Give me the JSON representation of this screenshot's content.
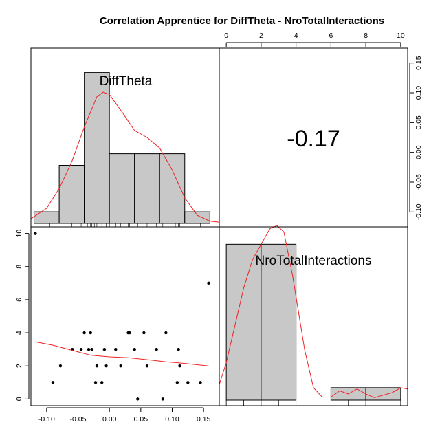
{
  "chart_data": {
    "type": "pairs",
    "title": "Correlation Apprentice for DiffTheta - NroTotalInteractions",
    "variables": [
      "DiffTheta",
      "NroTotalInteractions"
    ],
    "correlation": {
      "label": "-0.17",
      "value": -0.17
    },
    "difftheta_axis": {
      "ticks": [
        -0.1,
        -0.05,
        0.0,
        0.05,
        0.1,
        0.15
      ],
      "tick_labels": [
        "-0.10",
        "-0.05",
        "0.00",
        "0.05",
        "0.10",
        "0.15"
      ],
      "range": [
        -0.125,
        0.175
      ]
    },
    "interactions_axis": {
      "ticks": [
        0,
        2,
        4,
        6,
        8,
        10
      ],
      "tick_labels": [
        "0",
        "2",
        "4",
        "6",
        "8",
        "10"
      ],
      "range": [
        -0.4,
        10.4
      ]
    },
    "difftheta_histogram": {
      "bin_edges": [
        -0.12,
        -0.08,
        -0.04,
        0.0,
        0.04,
        0.08,
        0.12,
        0.16
      ],
      "heights": [
        1,
        5,
        13,
        6,
        6,
        6,
        1
      ]
    },
    "difftheta_density": {
      "x": [
        -0.125,
        -0.1,
        -0.08,
        -0.06,
        -0.04,
        -0.02,
        -0.01,
        0.0,
        0.02,
        0.04,
        0.06,
        0.08,
        0.1,
        0.12,
        0.14,
        0.16,
        0.175
      ],
      "y": [
        0.4,
        1.3,
        3.0,
        5.3,
        8.3,
        10.9,
        11.3,
        11.1,
        9.6,
        8.0,
        7.4,
        6.5,
        4.6,
        2.2,
        0.7,
        0.2,
        0.1
      ]
    },
    "difftheta_rug": [
      -0.095,
      -0.06,
      -0.045,
      -0.035,
      -0.03,
      -0.028,
      -0.024,
      -0.02,
      -0.012,
      -0.005,
      0.0,
      0.01,
      0.018,
      0.03,
      0.032,
      0.045,
      0.055,
      0.06,
      0.075,
      0.085,
      0.09,
      0.105,
      0.11,
      0.112,
      0.125,
      0.145
    ],
    "interactions_histogram": {
      "bin_edges": [
        0,
        2,
        4,
        6,
        8,
        10
      ],
      "heights": [
        25,
        25,
        0,
        2,
        2
      ]
    },
    "interactions_density": {
      "x": [
        -0.4,
        0.0,
        0.5,
        1.0,
        1.5,
        2.0,
        2.5,
        2.9,
        3.3,
        3.8,
        4.5,
        5.0,
        5.5,
        6.0,
        6.5,
        7.0,
        7.5,
        8.0,
        8.5,
        9.0,
        9.5,
        10.0,
        10.4
      ],
      "y": [
        2.5,
        6.0,
        12.0,
        18.0,
        22.5,
        25.0,
        27.5,
        28.0,
        27.0,
        20.0,
        8.0,
        2.0,
        0.5,
        0.5,
        1.5,
        1.0,
        1.8,
        1.0,
        0.4,
        0.8,
        1.2,
        2.0,
        1.8
      ]
    },
    "interactions_rug": [
      0,
      1,
      2,
      3,
      4,
      7,
      8,
      10
    ],
    "scatter": [
      {
        "x": -0.118,
        "y": 10
      },
      {
        "x": -0.09,
        "y": 1
      },
      {
        "x": -0.078,
        "y": 2
      },
      {
        "x": -0.059,
        "y": 3
      },
      {
        "x": -0.045,
        "y": 3
      },
      {
        "x": -0.04,
        "y": 4
      },
      {
        "x": -0.03,
        "y": 4
      },
      {
        "x": -0.033,
        "y": 3
      },
      {
        "x": -0.028,
        "y": 3
      },
      {
        "x": -0.022,
        "y": 1
      },
      {
        "x": -0.02,
        "y": 2
      },
      {
        "x": -0.012,
        "y": 1
      },
      {
        "x": -0.008,
        "y": 3
      },
      {
        "x": -0.005,
        "y": 2
      },
      {
        "x": 0.01,
        "y": 3
      },
      {
        "x": 0.018,
        "y": 2
      },
      {
        "x": 0.03,
        "y": 4
      },
      {
        "x": 0.032,
        "y": 4
      },
      {
        "x": 0.04,
        "y": 3
      },
      {
        "x": 0.045,
        "y": 0
      },
      {
        "x": 0.055,
        "y": 4
      },
      {
        "x": 0.06,
        "y": 2
      },
      {
        "x": 0.075,
        "y": 3
      },
      {
        "x": 0.085,
        "y": 0
      },
      {
        "x": 0.09,
        "y": 4
      },
      {
        "x": 0.108,
        "y": 1
      },
      {
        "x": 0.11,
        "y": 3
      },
      {
        "x": 0.112,
        "y": 2
      },
      {
        "x": 0.125,
        "y": 1
      },
      {
        "x": 0.145,
        "y": 1
      },
      {
        "x": 0.158,
        "y": 7
      }
    ],
    "scatter_smooth": {
      "x": [
        -0.118,
        -0.09,
        -0.06,
        -0.03,
        0.0,
        0.03,
        0.06,
        0.09,
        0.12,
        0.158
      ],
      "y": [
        3.45,
        3.25,
        2.95,
        2.65,
        2.55,
        2.5,
        2.38,
        2.25,
        2.15,
        2.0
      ]
    },
    "colors": {
      "bar_fill": "#c8c8c8",
      "curve": "#ee2222",
      "points": "#000000"
    }
  }
}
